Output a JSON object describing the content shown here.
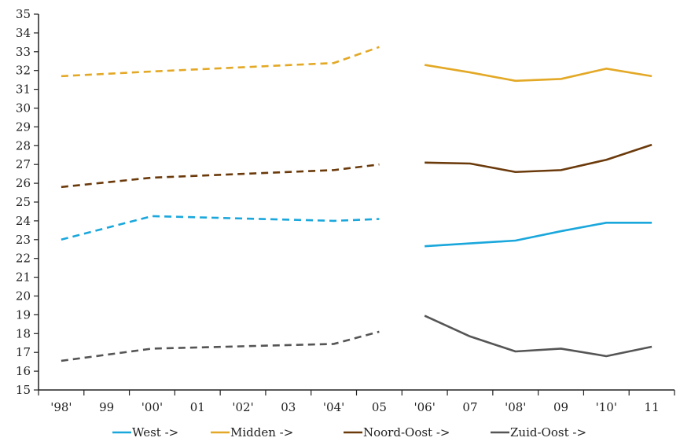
{
  "chart_data": {
    "type": "line",
    "title": "",
    "xlabel": "",
    "ylabel": "",
    "ylim": [
      15,
      35
    ],
    "yticks": [
      15,
      16,
      17,
      18,
      19,
      20,
      21,
      22,
      23,
      24,
      25,
      26,
      27,
      28,
      29,
      30,
      31,
      32,
      33,
      34,
      35
    ],
    "categories": [
      "'98'",
      "99",
      "'00'",
      "01",
      "'02'",
      "03",
      "'04'",
      "05",
      "'06'",
      "07",
      "'08'",
      "09",
      "'10'",
      "11"
    ],
    "grid": false,
    "legend_position": "bottom",
    "series": [
      {
        "name": "West ->",
        "color": "#1aa7dc",
        "dashed_values": [
          23.0,
          null,
          24.25,
          null,
          null,
          null,
          24.0,
          24.1,
          null,
          null,
          null,
          null,
          null,
          null
        ],
        "solid_values": [
          null,
          null,
          null,
          null,
          null,
          null,
          null,
          null,
          22.65,
          22.8,
          22.95,
          23.45,
          23.9,
          23.9
        ]
      },
      {
        "name": "Midden ->",
        "color": "#e3a825",
        "dashed_values": [
          31.7,
          null,
          31.95,
          null,
          null,
          null,
          32.4,
          33.25,
          null,
          null,
          null,
          null,
          null,
          null
        ],
        "solid_values": [
          null,
          null,
          null,
          null,
          null,
          null,
          null,
          null,
          32.3,
          31.9,
          31.45,
          31.55,
          32.1,
          31.7
        ]
      },
      {
        "name": "Noord-Oost ->",
        "color": "#6b3a0b",
        "dashed_values": [
          25.8,
          null,
          26.3,
          null,
          null,
          null,
          26.7,
          27.0,
          null,
          null,
          null,
          null,
          null,
          null
        ],
        "solid_values": [
          null,
          null,
          null,
          null,
          null,
          null,
          null,
          null,
          27.1,
          27.05,
          26.6,
          26.7,
          27.25,
          28.05
        ]
      },
      {
        "name": "Zuid-Oost ->",
        "color": "#555555",
        "dashed_values": [
          16.55,
          null,
          17.2,
          null,
          null,
          null,
          17.45,
          18.1,
          null,
          null,
          null,
          null,
          null,
          null
        ],
        "solid_values": [
          null,
          null,
          null,
          null,
          null,
          null,
          null,
          null,
          18.95,
          17.85,
          17.05,
          17.2,
          16.8,
          17.3
        ]
      }
    ]
  }
}
